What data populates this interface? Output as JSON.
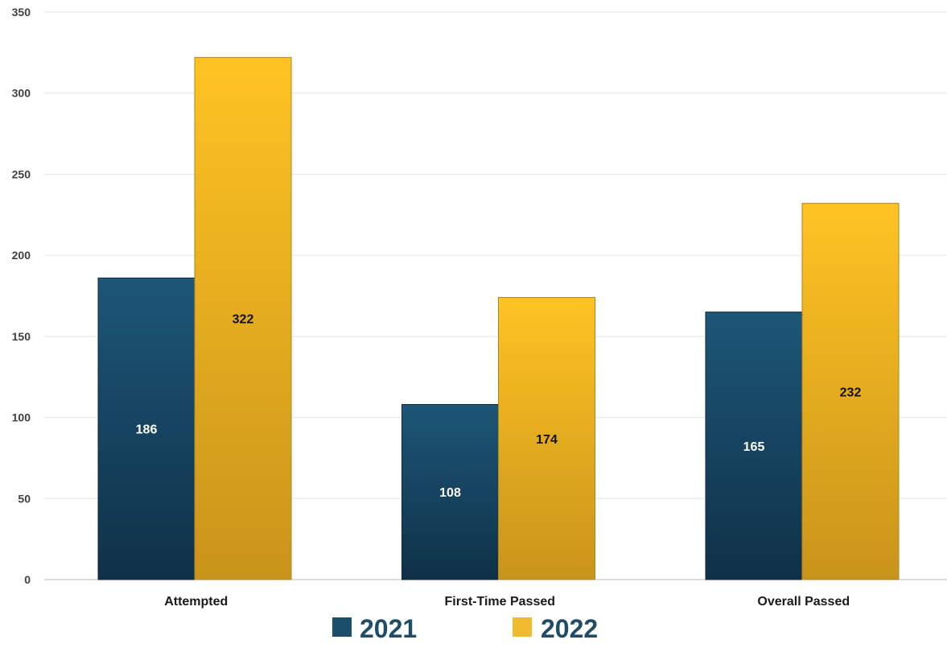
{
  "chart_data": {
    "type": "bar",
    "categories": [
      "Attempted",
      "First-Time Passed",
      "Overall Passed"
    ],
    "series": [
      {
        "name": "2021",
        "values": [
          186,
          108,
          165
        ]
      },
      {
        "name": "2022",
        "values": [
          322,
          174,
          232
        ]
      }
    ],
    "ylim": [
      0,
      350
    ],
    "yticks": [
      0,
      50,
      100,
      150,
      200,
      250,
      300,
      350
    ],
    "grid": true,
    "legend": "bottom",
    "data_labels": true
  },
  "colors": {
    "series_2021": "#1b4e6b",
    "series_2022": "#f2bb2f",
    "label_2021": "#ffffff",
    "label_2022": "#111111",
    "legend_text": "#1f4c66"
  }
}
